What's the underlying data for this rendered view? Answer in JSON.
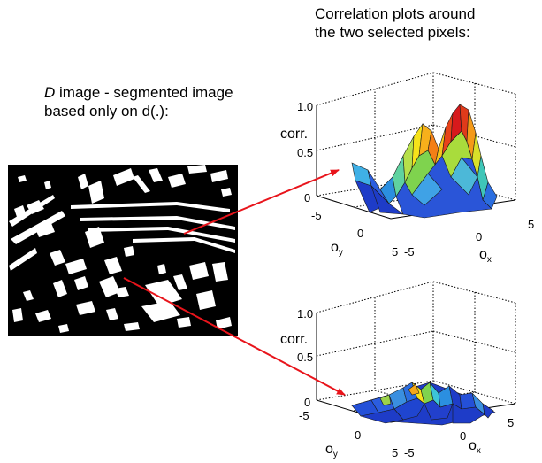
{
  "right_caption": {
    "line1": "Correlation plots around",
    "line2": "the two selected pixels:"
  },
  "left_caption": {
    "italic_prefix": "D",
    "line1_rest": " image - segmented image",
    "line2": "based only on d(.):"
  },
  "plots": [
    {
      "z_ticks": [
        "1.0",
        "0.5",
        "0"
      ],
      "z_label": "corr.",
      "oy_ticks": [
        "-5",
        "0",
        "5"
      ],
      "ox_ticks": [
        "-5",
        "0",
        "5"
      ],
      "oy_label": "o",
      "oy_sub": "y",
      "ox_label": "o",
      "ox_sub": "x"
    },
    {
      "z_ticks": [
        "1.0",
        "0.5",
        "0"
      ],
      "z_label": "corr.",
      "oy_ticks": [
        "-5",
        "0",
        "5"
      ],
      "ox_ticks": [
        "-5",
        "0",
        "5"
      ],
      "oy_label": "o",
      "oy_sub": "y",
      "ox_label": "o",
      "ox_sub": "x"
    }
  ],
  "colors": {
    "arrow": "#e8141b",
    "surface_low": "#1e3cc8",
    "surface_high": "#d7191c"
  }
}
